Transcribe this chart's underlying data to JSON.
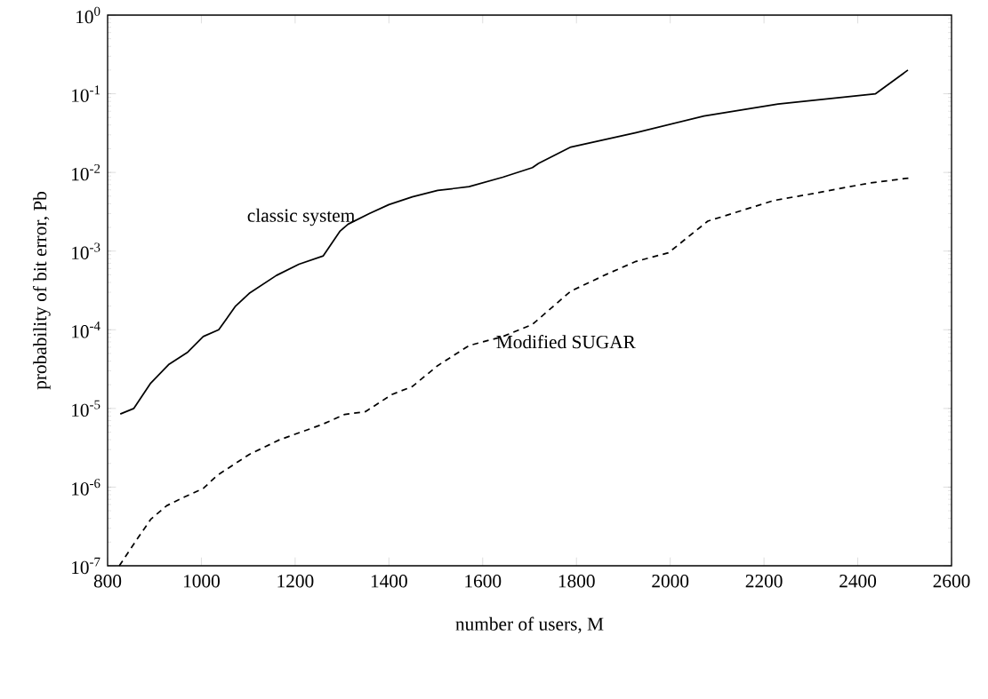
{
  "chart_data": {
    "type": "line",
    "xlabel": "number of users, M",
    "ylabel": "probability of bit error, Pb",
    "log": "y",
    "xlim": [
      800,
      2600
    ],
    "ylim": [
      1e-07,
      1
    ],
    "xticks": [
      800,
      1000,
      1200,
      1400,
      1600,
      1800,
      2000,
      2200,
      2400,
      2600
    ],
    "yticks": [
      {
        "value": 1e-07,
        "label": "10$^{-7}$"
      },
      {
        "value": 1e-06,
        "label": "10$^{-6}$"
      },
      {
        "value": 1e-05,
        "label": "10$^{-5}$"
      },
      {
        "value": 0.0001,
        "label": "10$^{-4}$"
      },
      {
        "value": 0.001,
        "label": "10$^{-3}$"
      },
      {
        "value": 0.01,
        "label": "10$^{-2}$"
      },
      {
        "value": 0.1,
        "label": "10$^{-1}$"
      },
      {
        "value": 1,
        "label": "10$^{0}$"
      }
    ],
    "grid": false,
    "legend": false,
    "marker": "none",
    "series": [
      {
        "name": "classic system",
        "color": "#000000",
        "line_style": "solid",
        "x": [
          827,
          856,
          892,
          930,
          971,
          1004,
          1037,
          1073,
          1102,
          1160,
          1208,
          1260,
          1296,
          1313,
          1358,
          1400,
          1450,
          1504,
          1571,
          1643,
          1706,
          1719,
          1788,
          1927,
          2072,
          2230,
          2438,
          2507
        ],
        "values": [
          8.5e-06,
          1e-05,
          2.1e-05,
          3.6e-05,
          5.2e-05,
          8.2e-05,
          0.0001,
          0.0002,
          0.00029,
          0.00049,
          0.00068,
          0.00087,
          0.0018,
          0.0022,
          0.003,
          0.0039,
          0.0049,
          0.0059,
          0.0066,
          0.0087,
          0.0115,
          0.013,
          0.021,
          0.032,
          0.052,
          0.074,
          0.1,
          0.2
        ]
      },
      {
        "name": "Modified SUGAR",
        "color": "#000000",
        "line_style": "dashed",
        "x": [
          825,
          861,
          892,
          926,
          964,
          1004,
          1033,
          1102,
          1167,
          1256,
          1306,
          1350,
          1406,
          1450,
          1504,
          1571,
          1643,
          1706,
          1788,
          1865,
          1927,
          1996,
          2080,
          2221,
          2306,
          2423,
          2510
        ],
        "values": [
          1e-07,
          2.1e-07,
          3.9e-07,
          5.8e-07,
          7.5e-07,
          9.6e-07,
          1.4e-06,
          2.6e-06,
          4e-06,
          6.2e-06,
          8.4e-06,
          9.1e-06,
          1.5e-05,
          1.9e-05,
          3.5e-05,
          6.3e-05,
          8.2e-05,
          0.000117,
          0.00031,
          0.00051,
          0.00074,
          0.00095,
          0.0024,
          0.0044,
          0.0054,
          0.0073,
          0.0085
        ]
      }
    ]
  }
}
